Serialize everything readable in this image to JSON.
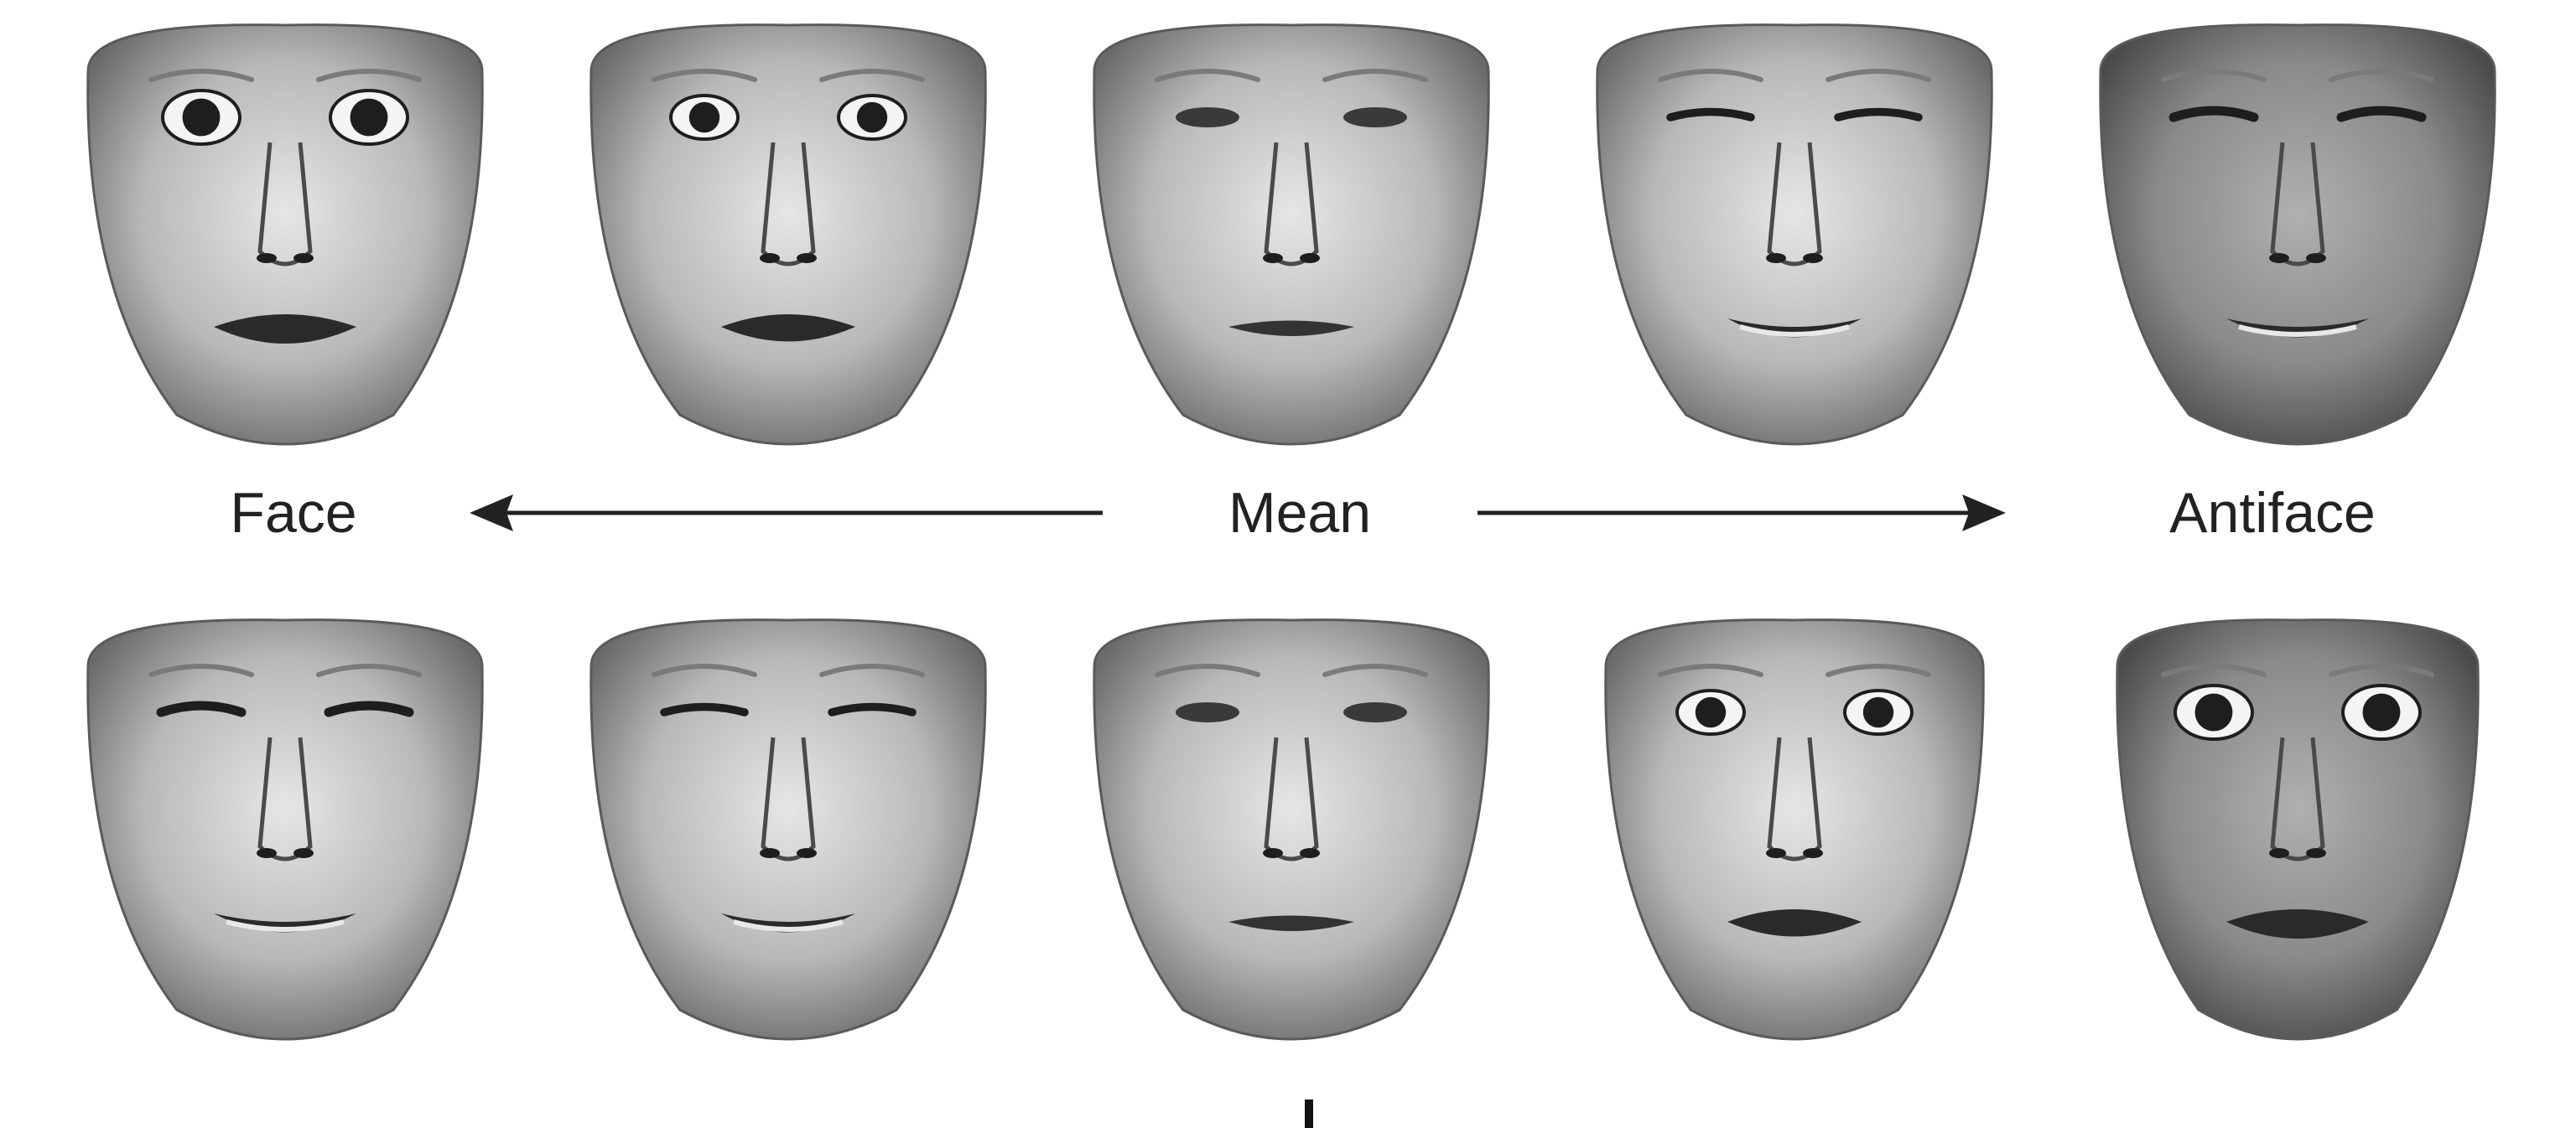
{
  "figure": {
    "labels": {
      "face": "Face",
      "mean": "Mean",
      "antiface": "Antiface"
    },
    "colors": {
      "background": "#ffffff",
      "skin_light": "#d9d9d9",
      "skin_dark": "#6e6e6e",
      "feature": "#1e1e1e",
      "arrow": "#222222"
    },
    "rows": [
      {
        "name": "top-row",
        "faces": [
          {
            "name": "fear-face",
            "expression": "fear",
            "intensity": 1.0
          },
          {
            "name": "fear-face-half",
            "expression": "fear",
            "intensity": 0.5
          },
          {
            "name": "mean-face",
            "expression": "neutral",
            "intensity": 0
          },
          {
            "name": "fear-antiface-half",
            "expression": "anti-fear",
            "intensity": 0.5
          },
          {
            "name": "fear-antiface",
            "expression": "anti-fear",
            "intensity": 1.0
          }
        ]
      },
      {
        "name": "bottom-row",
        "faces": [
          {
            "name": "disgust-face",
            "expression": "disgust",
            "intensity": 1.0
          },
          {
            "name": "disgust-face-half",
            "expression": "disgust",
            "intensity": 0.5
          },
          {
            "name": "mean-face",
            "expression": "neutral",
            "intensity": 0
          },
          {
            "name": "disgust-antiface-half",
            "expression": "anti-disgust",
            "intensity": 0.5
          },
          {
            "name": "disgust-antiface",
            "expression": "anti-disgust",
            "intensity": 1.0
          }
        ]
      }
    ]
  }
}
